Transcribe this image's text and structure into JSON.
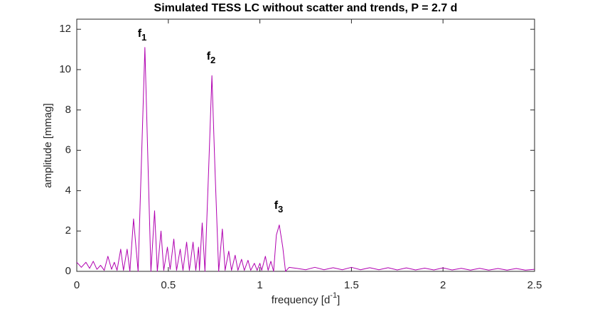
{
  "chart_data": {
    "type": "line",
    "title": "Simulated TESS LC without scatter and trends, P = 2.7 d",
    "xlabel": [
      "frequency  [d",
      "-1",
      "]"
    ],
    "ylabel": "amplitude  [mmag]",
    "annotations": [
      [
        "f",
        "1"
      ],
      [
        "f",
        "2"
      ],
      [
        "f",
        "3"
      ]
    ],
    "color": "#b000b0",
    "xlim": [
      0,
      2.5
    ],
    "ylim": [
      0,
      12.5
    ],
    "xticks": [
      0,
      0.5,
      1,
      1.5,
      2,
      2.5
    ],
    "yticks": [
      0,
      2,
      4,
      6,
      8,
      10,
      12
    ],
    "x": [
      0,
      0.025,
      0.05,
      0.07,
      0.09,
      0.11,
      0.13,
      0.15,
      0.17,
      0.19,
      0.205,
      0.22,
      0.24,
      0.255,
      0.275,
      0.29,
      0.31,
      0.335,
      0.35,
      0.372,
      0.39,
      0.405,
      0.425,
      0.44,
      0.46,
      0.475,
      0.495,
      0.51,
      0.53,
      0.545,
      0.565,
      0.58,
      0.6,
      0.615,
      0.635,
      0.65,
      0.665,
      0.67,
      0.685,
      0.7,
      0.72,
      0.738,
      0.755,
      0.775,
      0.795,
      0.81,
      0.83,
      0.845,
      0.865,
      0.88,
      0.9,
      0.915,
      0.935,
      0.95,
      0.97,
      0.985,
      1.0,
      1.01,
      1.03,
      1.045,
      1.06,
      1.075,
      1.09,
      1.106,
      1.125,
      1.14,
      1.16,
      1.2,
      1.25,
      1.3,
      1.35,
      1.4,
      1.45,
      1.5,
      1.55,
      1.6,
      1.65,
      1.7,
      1.75,
      1.8,
      1.85,
      1.9,
      1.95,
      2.0,
      2.05,
      2.1,
      2.15,
      2.2,
      2.25,
      2.3,
      2.35,
      2.4,
      2.45,
      2.5
    ],
    "values": [
      0.45,
      0.2,
      0.45,
      0.15,
      0.5,
      0.1,
      0.3,
      0.05,
      0.75,
      0.1,
      0.45,
      0.05,
      1.1,
      0.05,
      1.1,
      0.0,
      2.6,
      0.0,
      4.5,
      11.1,
      5.0,
      0.0,
      3.0,
      0.0,
      2.0,
      0.05,
      1.2,
      0.1,
      1.6,
      0.05,
      1.1,
      0.05,
      1.45,
      0.05,
      1.45,
      0.05,
      1.2,
      0.05,
      2.4,
      0.0,
      5.0,
      9.7,
      5.0,
      0.0,
      2.1,
      0.05,
      1.0,
      0.05,
      0.8,
      0.05,
      0.6,
      0.05,
      0.55,
      0.05,
      0.4,
      0.05,
      0.4,
      0.05,
      0.75,
      0.05,
      0.5,
      0.0,
      1.8,
      2.3,
      1.2,
      0.0,
      0.2,
      0.15,
      0.08,
      0.2,
      0.08,
      0.18,
      0.08,
      0.2,
      0.08,
      0.18,
      0.08,
      0.18,
      0.07,
      0.17,
      0.07,
      0.16,
      0.07,
      0.17,
      0.07,
      0.15,
      0.06,
      0.15,
      0.06,
      0.14,
      0.06,
      0.14,
      0.06,
      0.1
    ]
  }
}
